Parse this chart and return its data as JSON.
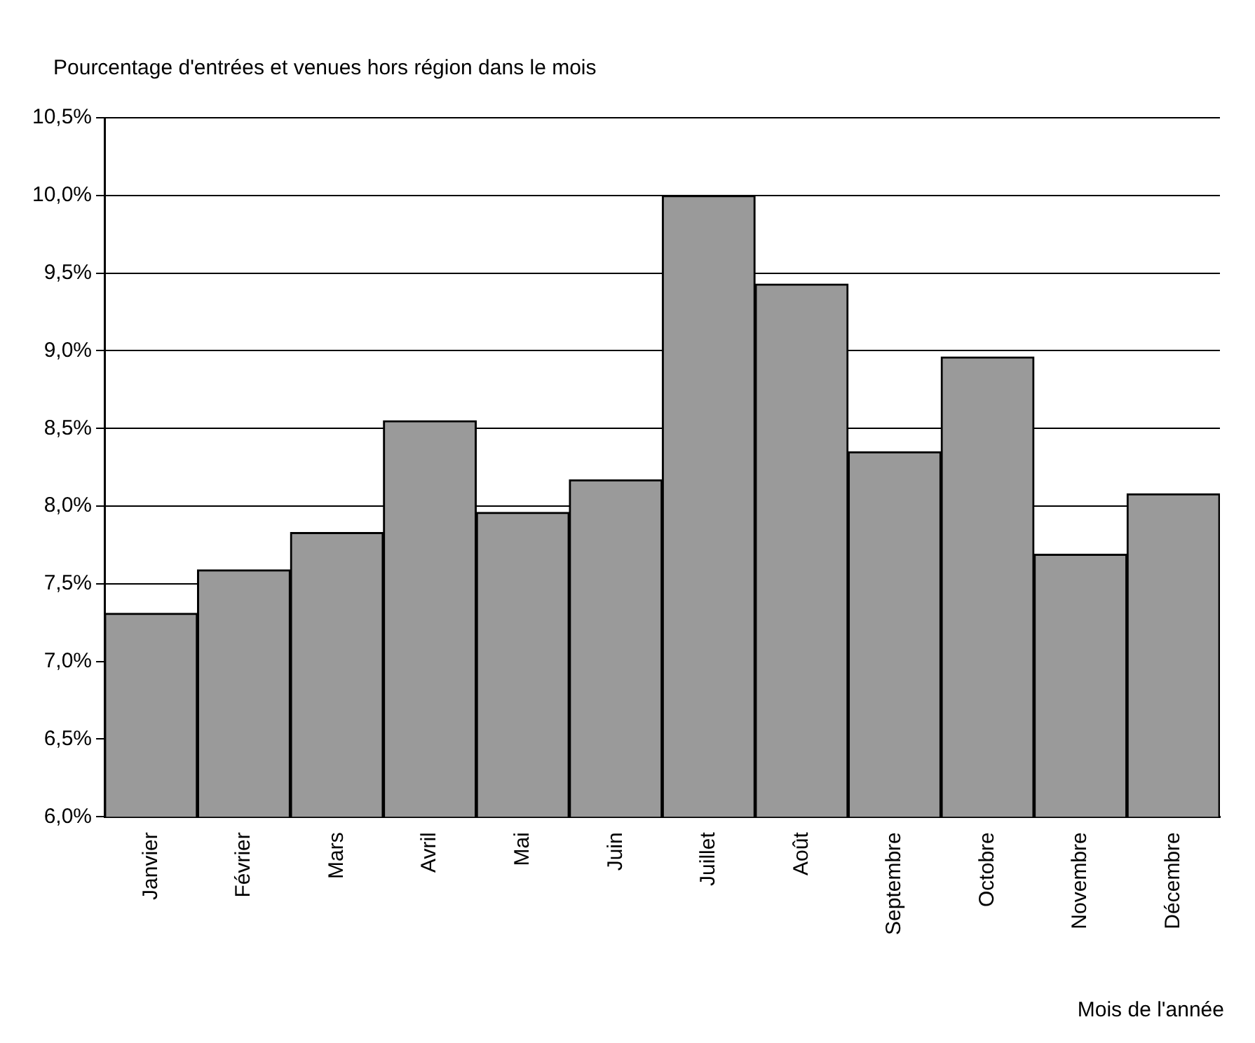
{
  "chart_data": {
    "type": "bar",
    "title": "Pourcentage d'entrées et venues hors région dans le mois",
    "xlabel": "Mois de l'année",
    "categories": [
      "Janvier",
      "Février",
      "Mars",
      "Avril",
      "Mai",
      "Juin",
      "Juillet",
      "Août",
      "Septembre",
      "Octobre",
      "Novembre",
      "Décembre"
    ],
    "values": [
      7.31,
      7.59,
      7.83,
      8.55,
      7.96,
      8.17,
      10.0,
      9.43,
      8.35,
      8.96,
      7.69,
      8.08
    ],
    "color": "#9a9a9a",
    "ylim": [
      6.0,
      10.5
    ],
    "yticks": [
      {
        "value": 6.0,
        "label": "6,0%"
      },
      {
        "value": 6.5,
        "label": "6,5%"
      },
      {
        "value": 7.0,
        "label": "7,0%"
      },
      {
        "value": 7.5,
        "label": "7,5%"
      },
      {
        "value": 8.0,
        "label": "8,0%"
      },
      {
        "value": 8.5,
        "label": "8,5%"
      },
      {
        "value": 9.0,
        "label": "9,0%"
      },
      {
        "value": 9.5,
        "label": "9,5%"
      },
      {
        "value": 10.0,
        "label": "10,0%"
      },
      {
        "value": 10.5,
        "label": "10,5%"
      }
    ],
    "grid": "y",
    "legend": false
  }
}
